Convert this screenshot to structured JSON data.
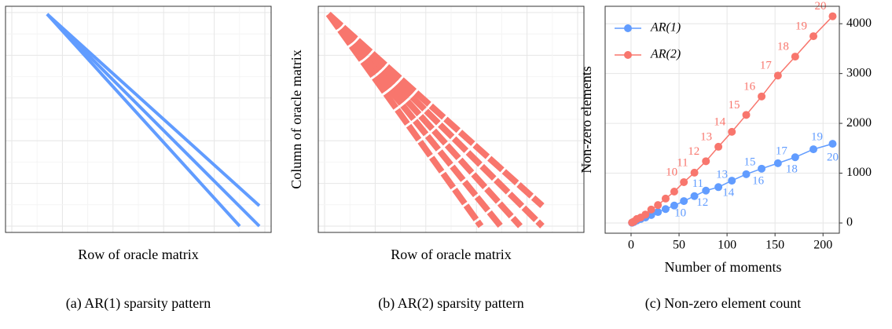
{
  "chart_data": [
    {
      "type": "sparsity",
      "caption": "(a) AR(1) sparsity pattern",
      "xlabel": "Row of oracle matrix",
      "ylabel": "Column of oracle matrix",
      "color": "#619cff",
      "grid": true
    },
    {
      "type": "sparsity",
      "caption": "(b) AR(2) sparsity pattern",
      "xlabel": "Row of oracle matrix",
      "ylabel": "Column of oracle matrix",
      "color": "#f8766d",
      "grid": true
    },
    {
      "type": "line",
      "caption": "(c) Non-zero element count",
      "xlabel": "Number of moments",
      "ylabel": "Non-zero elements",
      "xlim": [
        -27,
        217
      ],
      "ylim": [
        -205,
        4350
      ],
      "xticks": [
        0,
        50,
        100,
        150,
        200
      ],
      "yticks": [
        0,
        1000,
        2000,
        3000,
        4000
      ],
      "y_axis_side": "right",
      "grid": true,
      "legend": "top-left",
      "x": [
        1,
        3,
        6,
        10,
        15,
        21,
        28,
        36,
        45,
        55,
        66,
        78,
        91,
        105,
        120,
        136,
        153,
        171,
        190,
        210
      ],
      "series": [
        {
          "name": "AR(1)",
          "color": "#619cff",
          "values": [
            5,
            20,
            50,
            80,
            110,
            160,
            220,
            280,
            350,
            440,
            540,
            650,
            720,
            850,
            980,
            1090,
            1200,
            1320,
            1480,
            1590
          ],
          "point_labels": [
            null,
            null,
            null,
            null,
            null,
            null,
            null,
            null,
            null,
            10,
            11,
            12,
            13,
            14,
            15,
            16,
            17,
            18,
            19,
            20
          ]
        },
        {
          "name": "AR(2)",
          "color": "#f8766d",
          "values": [
            10,
            30,
            80,
            110,
            170,
            270,
            360,
            490,
            630,
            820,
            1010,
            1240,
            1530,
            1830,
            2170,
            2540,
            2960,
            3340,
            3750,
            4150
          ],
          "point_labels": [
            null,
            null,
            null,
            null,
            null,
            null,
            null,
            null,
            null,
            10,
            11,
            12,
            13,
            14,
            15,
            16,
            17,
            18,
            19,
            20
          ]
        }
      ]
    }
  ]
}
